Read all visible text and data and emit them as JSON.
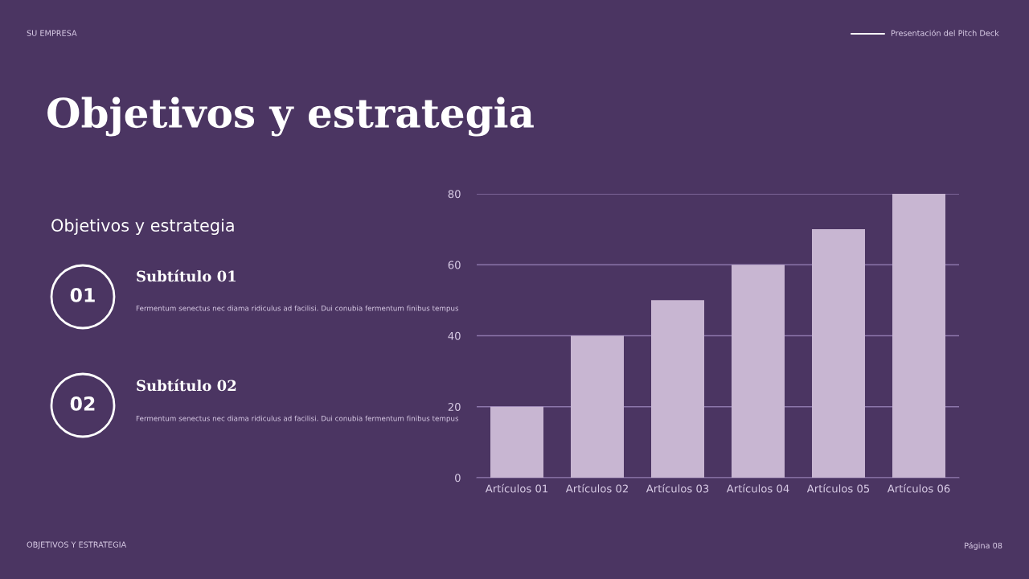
{
  "chart_data": [
    {
      "type": "other",
      "title": "Objetivos y estrategia",
      "subtitle": "Objetivos y estrategia",
      "annotations": [
        "SU EMPRESA",
        "Presentación del Pitch Deck",
        "01",
        "Subtítulo 01",
        "Fermentum senectus nec diama ridiculus ad facilisi. Dui conubia fermentum finibus tempus",
        "02",
        "Subtítulo 02",
        "Fermentum senectus nec diama ridiculus ad facilisi. Dui conubia fermentum finibus tempus",
        "OBJETIVOS Y ESTRATEGIA",
        "Página 08"
      ]
    },
    {
      "type": "bar",
      "categories": [
        "Artículos 01",
        "Artículos 02",
        "Artículos 03",
        "Artículos 04",
        "Artículos 05",
        "Artículos 06"
      ],
      "values": [
        20,
        40,
        50,
        60,
        70,
        80
      ],
      "color": "#c8b6d2",
      "ylim": [
        0,
        80
      ],
      "yticks": [
        0,
        20,
        40,
        60,
        80
      ],
      "grid": "y"
    }
  ]
}
